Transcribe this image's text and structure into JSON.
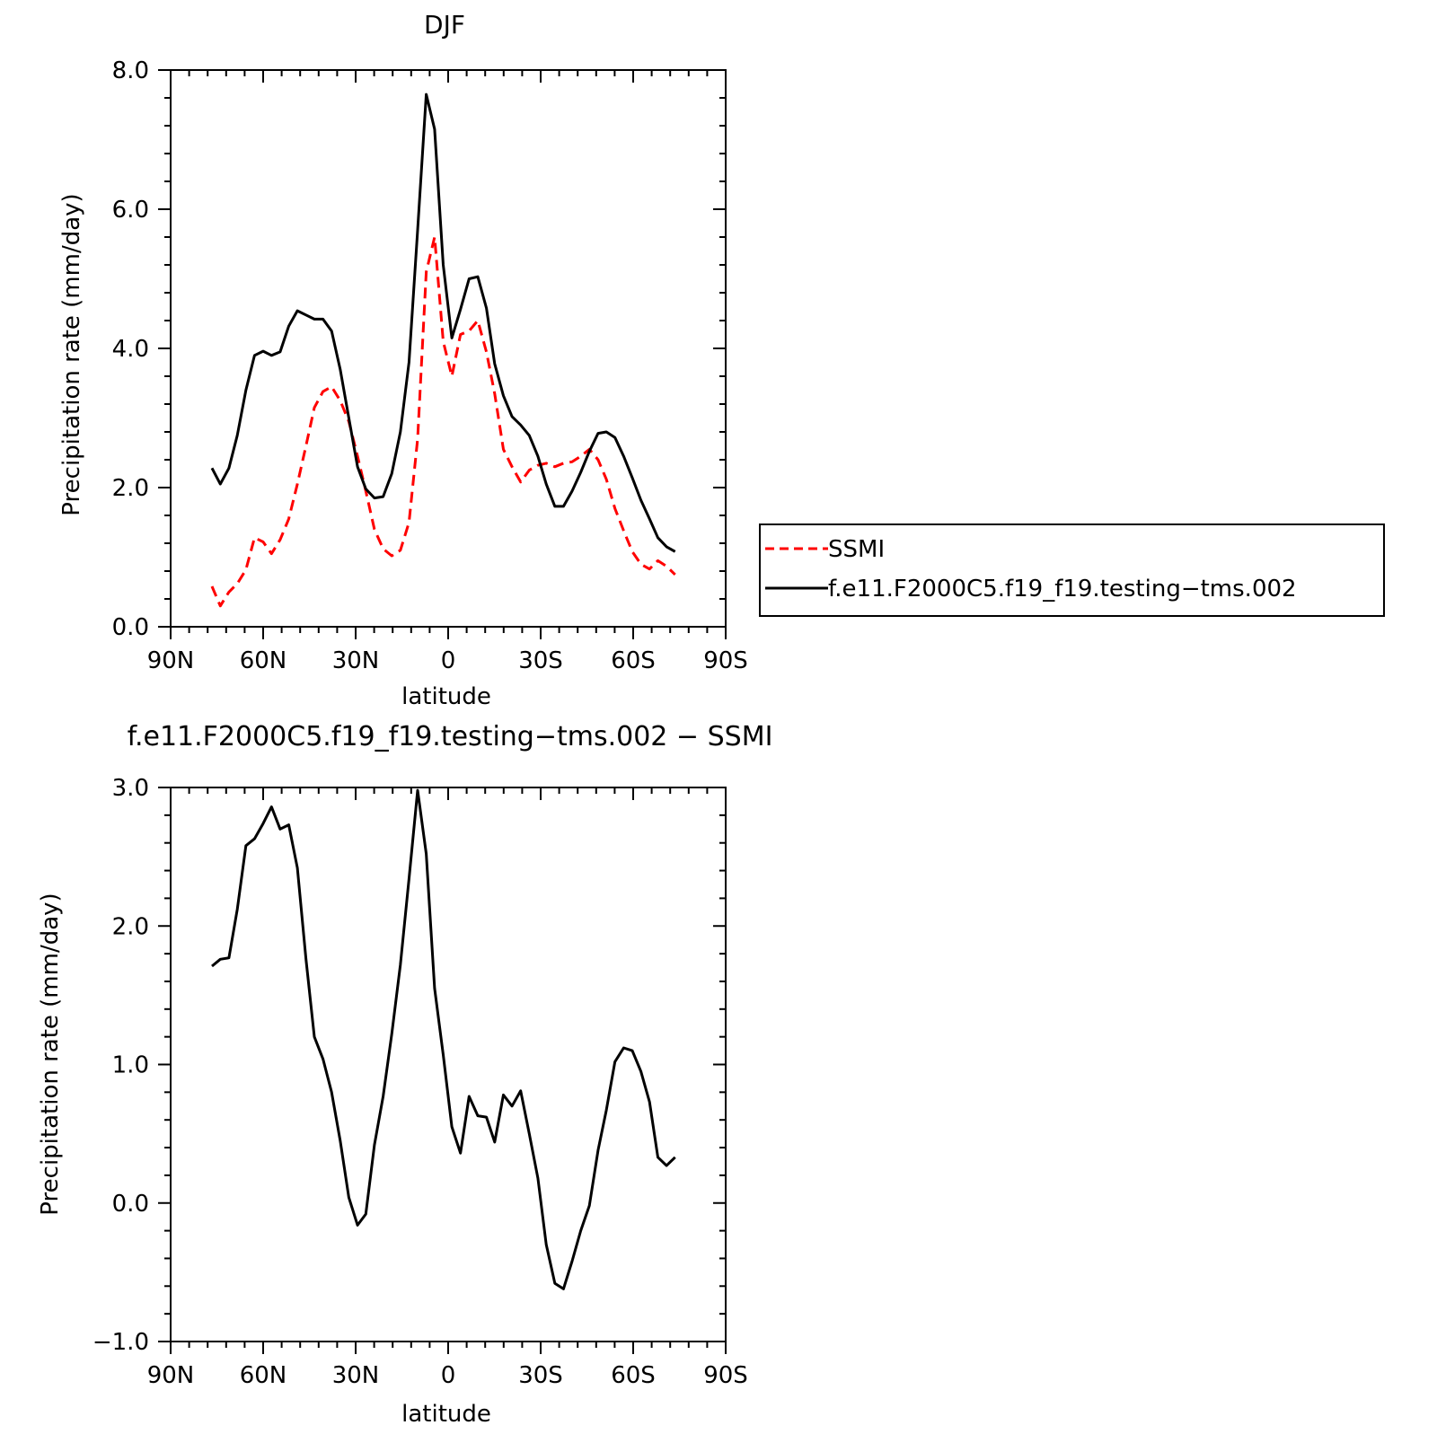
{
  "chart_data": [
    {
      "type": "line",
      "title": "DJF",
      "xlabel": "latitude",
      "ylabel": "Precipitation rate (mm/day)",
      "xlim": [
        90,
        -90
      ],
      "ylim": [
        0,
        8
      ],
      "x_ticks": [
        90,
        60,
        30,
        0,
        -30,
        -60,
        -90
      ],
      "x_tick_labels": [
        "90N",
        "60N",
        "30N",
        "0",
        "30S",
        "60S",
        "90S"
      ],
      "y_ticks": [
        0,
        2,
        4,
        6,
        8
      ],
      "y_tick_labels": [
        "0.0",
        "2.0",
        "4.0",
        "6.0",
        "8.0"
      ],
      "grid": false,
      "legend_position": "right",
      "x": [
        76.6,
        73.9,
        71.1,
        68.4,
        65.6,
        62.8,
        60.0,
        57.3,
        54.5,
        51.7,
        48.9,
        46.1,
        43.4,
        40.6,
        37.8,
        35.0,
        32.2,
        29.4,
        26.7,
        23.9,
        21.1,
        18.3,
        15.5,
        12.7,
        9.9,
        7.1,
        4.4,
        1.6,
        -1.2,
        -4.0,
        -6.8,
        -9.6,
        -12.4,
        -15.1,
        -17.9,
        -20.7,
        -23.5,
        -26.3,
        -29.1,
        -31.8,
        -34.6,
        -37.4,
        -40.2,
        -43.0,
        -45.8,
        -48.6,
        -51.3,
        -54.1,
        -56.9,
        -59.7,
        -62.5,
        -65.3,
        -68.0,
        -70.8,
        -73.6
      ],
      "series": [
        {
          "name": "SSMI",
          "color": "#ff0000",
          "dash": "dashed",
          "values": [
            0.58,
            0.3,
            0.5,
            0.62,
            0.82,
            1.28,
            1.22,
            1.05,
            1.25,
            1.55,
            2.05,
            2.6,
            3.15,
            3.38,
            3.45,
            3.25,
            2.95,
            2.45,
            1.95,
            1.4,
            1.12,
            1.02,
            1.1,
            1.5,
            2.7,
            5.1,
            5.6,
            4.1,
            3.6,
            4.2,
            4.25,
            4.4,
            3.95,
            3.35,
            2.55,
            2.3,
            2.08,
            2.25,
            2.32,
            2.35,
            2.3,
            2.35,
            2.37,
            2.45,
            2.55,
            2.4,
            2.12,
            1.7,
            1.38,
            1.08,
            0.9,
            0.83,
            0.95,
            0.87,
            0.75
          ]
        },
        {
          "name": "f.e11.F2000C5.f19_f19.testing−tms.002",
          "color": "#000000",
          "dash": "solid",
          "values": [
            2.28,
            2.05,
            2.28,
            2.75,
            3.4,
            3.9,
            3.96,
            3.9,
            3.95,
            4.32,
            4.54,
            4.48,
            4.42,
            4.42,
            4.25,
            3.7,
            3.0,
            2.3,
            1.98,
            1.85,
            1.87,
            2.2,
            2.8,
            3.8,
            5.7,
            7.65,
            7.15,
            5.2,
            4.15,
            4.56,
            5.0,
            5.03,
            4.58,
            3.78,
            3.32,
            3.02,
            2.9,
            2.75,
            2.45,
            2.05,
            1.73,
            1.73,
            1.95,
            2.22,
            2.52,
            2.78,
            2.8,
            2.72,
            2.45,
            2.14,
            1.82,
            1.55,
            1.28,
            1.15,
            1.08
          ]
        }
      ]
    },
    {
      "type": "line",
      "title": "f.e11.F2000C5.f19_f19.testing−tms.002 − SSMI",
      "xlabel": "latitude",
      "ylabel": "Precipitation rate (mm/day)",
      "xlim": [
        90,
        -90
      ],
      "ylim": [
        -1,
        3
      ],
      "x_ticks": [
        90,
        60,
        30,
        0,
        -30,
        -60,
        -90
      ],
      "x_tick_labels": [
        "90N",
        "60N",
        "30N",
        "0",
        "30S",
        "60S",
        "90S"
      ],
      "y_ticks": [
        -1,
        0,
        1,
        2,
        3
      ],
      "y_tick_labels": [
        "−1.0",
        "0.0",
        "1.0",
        "2.0",
        "3.0"
      ],
      "grid": false,
      "x": [
        76.6,
        73.9,
        71.1,
        68.4,
        65.6,
        62.8,
        60.0,
        57.3,
        54.5,
        51.7,
        48.9,
        46.1,
        43.4,
        40.6,
        37.8,
        35.0,
        32.2,
        29.4,
        26.7,
        23.9,
        21.1,
        18.3,
        15.5,
        12.7,
        9.9,
        7.1,
        4.4,
        1.6,
        -1.2,
        -4.0,
        -6.8,
        -9.6,
        -12.4,
        -15.1,
        -17.9,
        -20.7,
        -23.5,
        -26.3,
        -29.1,
        -31.8,
        -34.6,
        -37.4,
        -40.2,
        -43.0,
        -45.8,
        -48.6,
        -51.3,
        -54.1,
        -56.9,
        -59.7,
        -62.5,
        -65.3,
        -68.0,
        -70.8,
        -73.6
      ],
      "series": [
        {
          "color": "#000000",
          "dash": "solid",
          "values": [
            1.71,
            1.76,
            1.77,
            2.12,
            2.58,
            2.63,
            2.74,
            2.86,
            2.7,
            2.73,
            2.42,
            1.76,
            1.2,
            1.04,
            0.8,
            0.45,
            0.04,
            -0.16,
            -0.08,
            0.42,
            0.77,
            1.22,
            1.72,
            2.34,
            2.98,
            2.52,
            1.55,
            1.07,
            0.55,
            0.36,
            0.77,
            0.63,
            0.62,
            0.44,
            0.78,
            0.7,
            0.81,
            0.5,
            0.18,
            -0.3,
            -0.58,
            -0.62,
            -0.42,
            -0.2,
            -0.02,
            0.38,
            0.67,
            1.02,
            1.12,
            1.1,
            0.95,
            0.73,
            0.33,
            0.27,
            0.33
          ]
        }
      ]
    }
  ]
}
